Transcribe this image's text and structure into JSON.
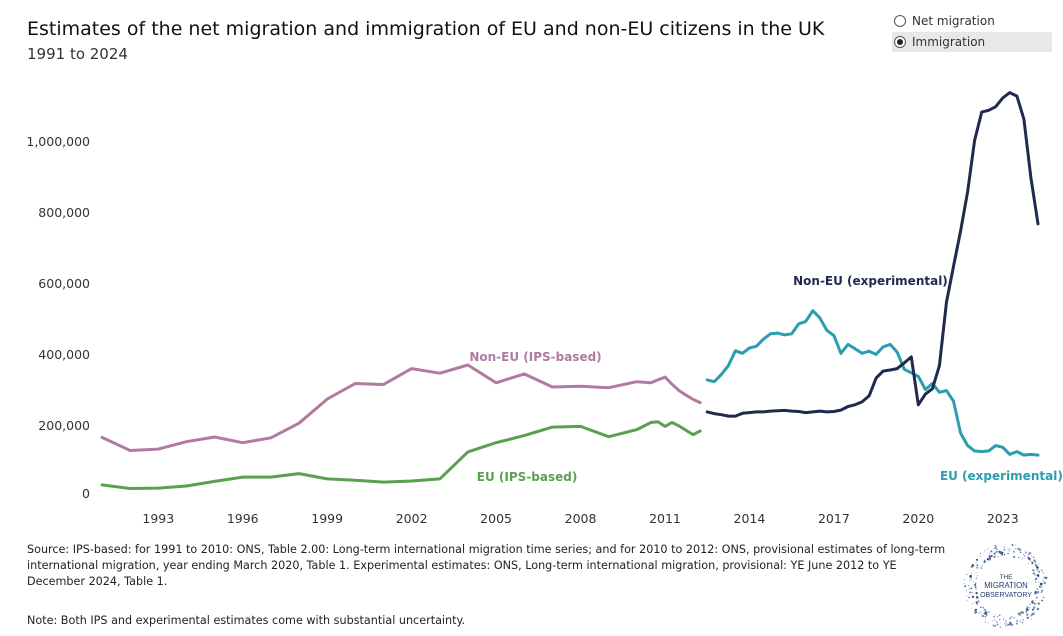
{
  "header": {
    "title": "Estimates of the net migration and immigration of EU and non-EU citizens in the UK",
    "subtitle": "1991 to 2024"
  },
  "toggle": {
    "options": [
      {
        "label": "Net migration",
        "selected": false
      },
      {
        "label": "Immigration",
        "selected": true
      }
    ]
  },
  "footer": {
    "source": "Source: IPS-based: for 1991 to 2010: ONS, Table 2.00: Long-term international migration time series; and for 2010 to 2012: ONS, provisional estimates of long-term international migration, year ending March 2020, Table 1. Experimental estimates: ONS, Long-term international migration, provisional: YE June 2012 to YE December 2024, Table 1.",
    "note": "Note: Both IPS and experimental estimates come with substantial uncertainty.",
    "logo_text": [
      "THE",
      "MIGRATION",
      "OBSERVATORY"
    ]
  },
  "chart_data": {
    "type": "line",
    "xlim": [
      1991,
      2024.5
    ],
    "ylim": [
      0,
      1200000
    ],
    "x_ticks": [
      1993,
      1996,
      1999,
      2002,
      2005,
      2008,
      2011,
      2014,
      2017,
      2020,
      2023
    ],
    "y_ticks": [
      0,
      200000,
      400000,
      600000,
      800000,
      1000000
    ],
    "y_tick_labels": [
      "0",
      "200,000",
      "400,000",
      "600,000",
      "800,000",
      "1,000,000"
    ],
    "grid": false,
    "series": [
      {
        "name": "Non-EU (IPS-based)",
        "color": "#b07aa1",
        "x": [
          1991,
          1992,
          1993,
          1994,
          1995,
          1996,
          1997,
          1998,
          1999,
          2000,
          2001,
          2002,
          2003,
          2004,
          2005,
          2006,
          2007,
          2008,
          2009,
          2010,
          2010.5,
          2010.75,
          2011,
          2011.25,
          2011.5,
          2011.75,
          2012,
          2012.25
        ],
        "y": [
          168000,
          131000,
          135000,
          156000,
          169000,
          153000,
          167000,
          208000,
          276000,
          320000,
          317000,
          362000,
          349000,
          372000,
          322000,
          347000,
          310000,
          312000,
          308000,
          325000,
          322000,
          330000,
          338000,
          318000,
          300000,
          287000,
          275000,
          266000
        ]
      },
      {
        "name": "EU (IPS-based)",
        "color": "#59a14f",
        "x": [
          1991,
          1992,
          1993,
          1994,
          1995,
          1996,
          1997,
          1998,
          1999,
          2000,
          2001,
          2002,
          2003,
          2004,
          2005,
          2006,
          2007,
          2008,
          2009,
          2010,
          2010.5,
          2010.75,
          2011,
          2011.25,
          2011.5,
          2011.75,
          2012,
          2012.25
        ],
        "y": [
          34000,
          24000,
          25000,
          31000,
          44000,
          56000,
          56000,
          66000,
          51000,
          47000,
          42000,
          45000,
          51000,
          127000,
          153000,
          173000,
          197000,
          199000,
          170000,
          190000,
          210000,
          212000,
          199000,
          210000,
          200000,
          188000,
          176000,
          186000
        ]
      },
      {
        "name": "EU (experimental)",
        "color": "#2a9daf",
        "x": [
          2012.5,
          2012.75,
          2013,
          2013.25,
          2013.5,
          2013.75,
          2014,
          2014.25,
          2014.5,
          2014.75,
          2015,
          2015.25,
          2015.5,
          2015.75,
          2016,
          2016.25,
          2016.5,
          2016.75,
          2017,
          2017.25,
          2017.5,
          2017.75,
          2018,
          2018.25,
          2018.5,
          2018.75,
          2019,
          2019.25,
          2019.5,
          2019.75,
          2020,
          2020.25,
          2020.5,
          2020.75,
          2021,
          2021.25,
          2021.5,
          2021.75,
          2022,
          2022.25,
          2022.5,
          2022.75,
          2023,
          2023.25,
          2023.5,
          2023.75,
          2024,
          2024.25
        ],
        "y": [
          330000,
          325000,
          345000,
          370000,
          412000,
          405000,
          420000,
          425000,
          445000,
          460000,
          462000,
          457000,
          460000,
          488000,
          495000,
          525000,
          505000,
          470000,
          455000,
          405000,
          430000,
          418000,
          405000,
          411000,
          402000,
          423000,
          430000,
          408000,
          360000,
          350000,
          340000,
          303000,
          320000,
          295000,
          300000,
          270000,
          180000,
          145000,
          130000,
          128000,
          130000,
          145000,
          140000,
          120000,
          128000,
          118000,
          120000,
          118000
        ]
      },
      {
        "name": "Non-EU (experimental)",
        "color": "#1f2a4d",
        "x": [
          2012.5,
          2012.75,
          2013,
          2013.25,
          2013.5,
          2013.75,
          2014,
          2014.25,
          2014.5,
          2014.75,
          2015,
          2015.25,
          2015.5,
          2015.75,
          2016,
          2016.25,
          2016.5,
          2016.75,
          2017,
          2017.25,
          2017.5,
          2017.75,
          2018,
          2018.25,
          2018.5,
          2018.75,
          2019,
          2019.25,
          2019.5,
          2019.75,
          2020,
          2020.25,
          2020.5,
          2020.75,
          2021,
          2021.25,
          2021.5,
          2021.75,
          2022,
          2022.25,
          2022.5,
          2022.75,
          2023,
          2023.25,
          2023.5,
          2023.75,
          2024,
          2024.25
        ],
        "y": [
          240000,
          235000,
          232000,
          228000,
          228000,
          236000,
          238000,
          240000,
          240000,
          242000,
          243000,
          244000,
          242000,
          241000,
          238000,
          240000,
          242000,
          240000,
          241000,
          245000,
          255000,
          260000,
          268000,
          285000,
          335000,
          355000,
          358000,
          362000,
          378000,
          395000,
          260000,
          290000,
          305000,
          370000,
          550000,
          650000,
          750000,
          860000,
          1005000,
          1085000,
          1090000,
          1100000,
          1125000,
          1140000,
          1130000,
          1065000,
          900000,
          770000
        ]
      }
    ],
    "labels": [
      {
        "text": "Non-EU (IPS-based)",
        "color": "#b07aa1",
        "x": 2006.4,
        "y": 383000
      },
      {
        "text": "EU (IPS-based)",
        "color": "#59a14f",
        "x": 2006.1,
        "y": 45000
      },
      {
        "text": "Non-EU (experimental)",
        "color": "#1f2a4d",
        "x": 2018.3,
        "y": 597000
      },
      {
        "text": "EU (experimental)",
        "color": "#2a9daf",
        "x": 2022.95,
        "y": 48000
      }
    ]
  }
}
